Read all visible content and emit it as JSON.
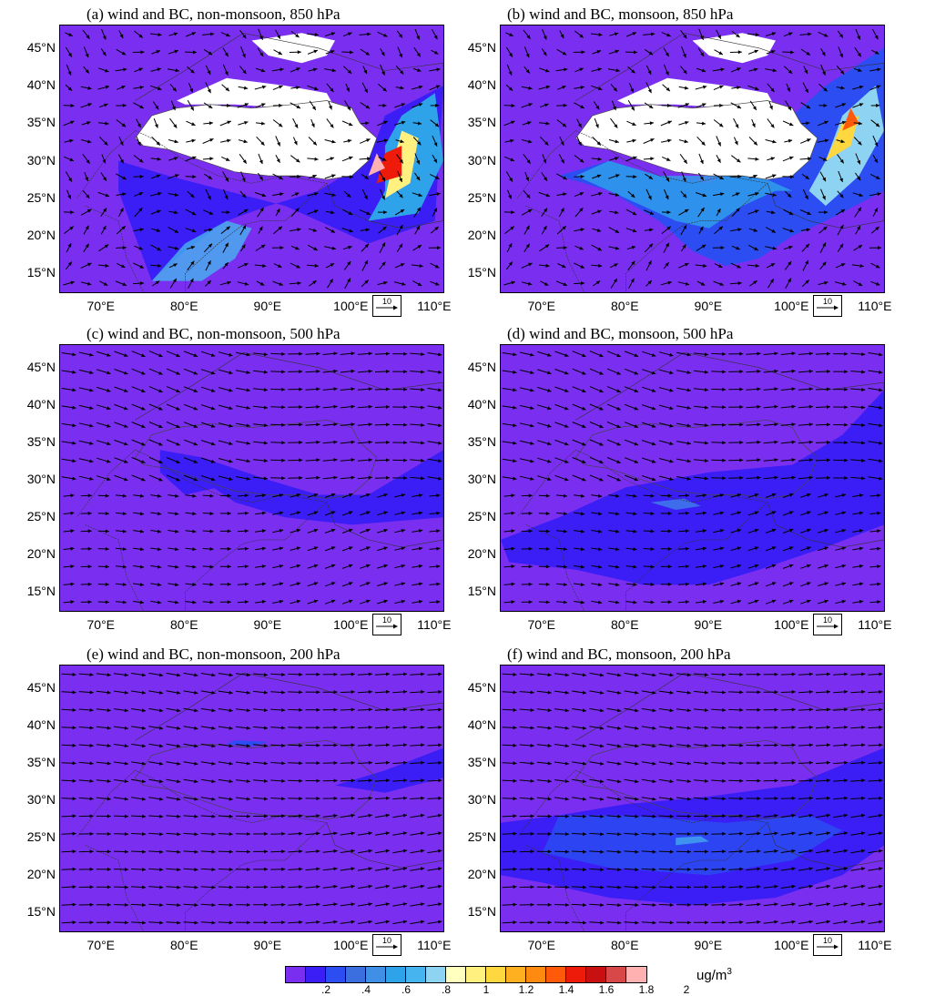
{
  "panels": [
    {
      "id": "a",
      "title": "(a) wind and BC, non-monsoon, 850 hPa",
      "level": "850",
      "season": "non-monsoon"
    },
    {
      "id": "b",
      "title": "(b) wind and BC, monsoon, 850 hPa",
      "level": "850",
      "season": "monsoon"
    },
    {
      "id": "c",
      "title": "(c) wind and BC, non-monsoon, 500 hPa",
      "level": "500",
      "season": "non-monsoon"
    },
    {
      "id": "d",
      "title": "(d) wind and BC, monsoon, 500 hPa",
      "level": "500",
      "season": "monsoon"
    },
    {
      "id": "e",
      "title": "(e) wind and BC, non-monsoon, 200 hPa",
      "level": "200",
      "season": "non-monsoon"
    },
    {
      "id": "f",
      "title": "(f) wind and BC, monsoon, 200 hPa",
      "level": "200",
      "season": "monsoon"
    }
  ],
  "lat_ticks": [
    "45°N",
    "40°N",
    "35°N",
    "30°N",
    "25°N",
    "20°N",
    "15°N"
  ],
  "lon_ticks": [
    "70°E",
    "80°E",
    "90°E",
    "100°E",
    "110°E"
  ],
  "reference_vector": "10",
  "colorbar": {
    "unit": "ug/m",
    "unit_sup": "3",
    "labels": [
      ".2",
      ".4",
      ".6",
      ".8",
      "1",
      "1.2",
      "1.4",
      "1.6",
      "1.8",
      "2"
    ],
    "colors": [
      "#7a2ff0",
      "#3a1ef5",
      "#2b4df2",
      "#3b6fe0",
      "#3f8fe6",
      "#2fa3e9",
      "#46b4ee",
      "#8fd3f2",
      "#ffffc0",
      "#fff080",
      "#ffd840",
      "#ffb020",
      "#ff8a10",
      "#ff5a0a",
      "#ee1a0a",
      "#c81010",
      "#d84848",
      "#ffb0b0"
    ]
  }
}
